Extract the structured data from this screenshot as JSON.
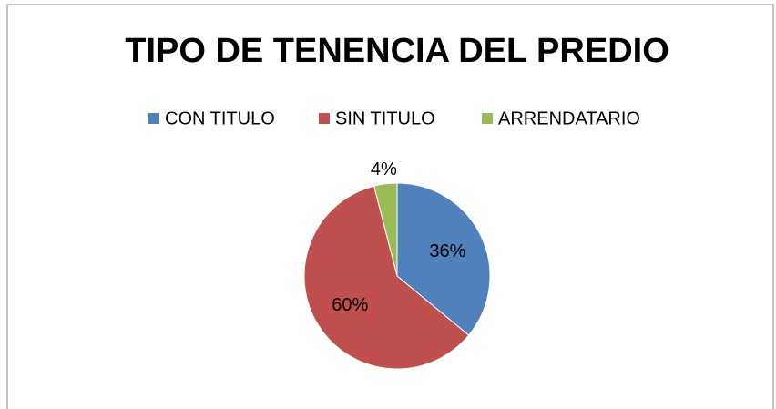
{
  "chart_data": {
    "type": "pie",
    "title": "TIPO DE TENENCIA DEL PREDIO",
    "categories": [
      "CON TITULO",
      "SIN TITULO",
      "ARRENDATARIO"
    ],
    "values": [
      36,
      60,
      4
    ],
    "value_labels": [
      "36%",
      "60%",
      "4%"
    ],
    "colors": [
      "#4f81bd",
      "#c0504d",
      "#9bbb59"
    ],
    "legend": "top"
  }
}
